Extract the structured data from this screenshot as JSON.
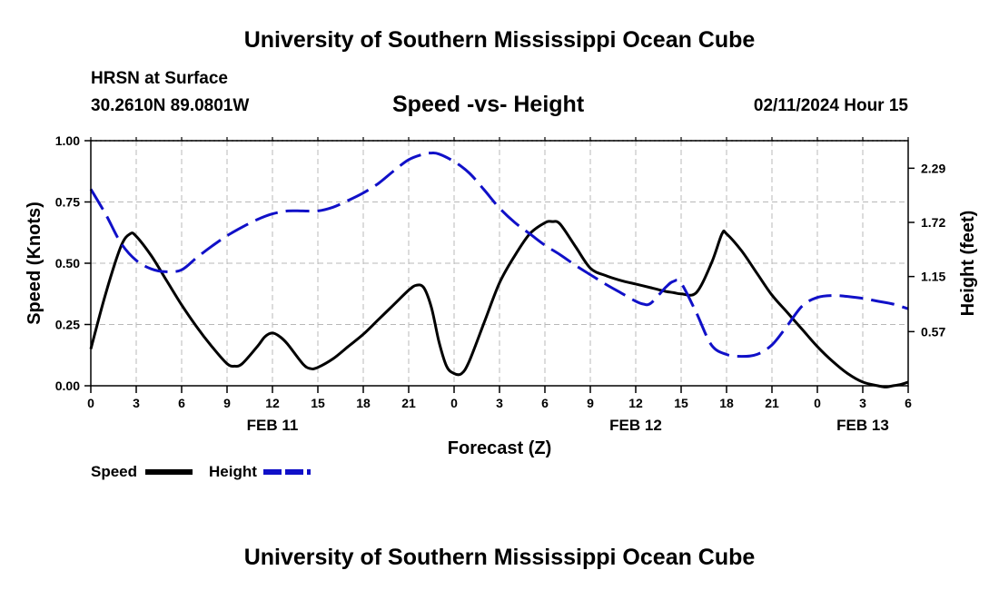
{
  "page": {
    "main_title": "University of Southern Mississippi Ocean Cube",
    "bottom_title": "University of Southern Mississippi Ocean Cube",
    "station": "HRSN at Surface",
    "coords": "30.2610N  89.0801W",
    "datetime": "02/11/2024 Hour 15"
  },
  "chart_data": {
    "type": "line",
    "title": "Speed -vs- Height",
    "xlabel": "Forecast (Z)",
    "ylabel": "Speed (Knots)",
    "ylabel_right": "Height (feet)",
    "x_range_hours": [
      0,
      54
    ],
    "x_tick_hours": [
      0,
      3,
      6,
      9,
      12,
      15,
      18,
      21,
      24,
      27,
      30,
      33,
      36,
      39,
      42,
      45,
      48,
      51,
      54
    ],
    "x_tick_labels": [
      "0",
      "3",
      "6",
      "9",
      "12",
      "15",
      "18",
      "21",
      "0",
      "3",
      "6",
      "9",
      "12",
      "15",
      "18",
      "21",
      "0",
      "3",
      "6"
    ],
    "date_labels": [
      {
        "hour": 12,
        "label": "FEB 11"
      },
      {
        "hour": 36,
        "label": "FEB 12"
      },
      {
        "hour": 51,
        "label": "FEB 13"
      }
    ],
    "ylim": [
      0,
      1.0
    ],
    "y_ticks": [
      0.0,
      0.25,
      0.5,
      0.75,
      1.0
    ],
    "y_tick_labels": [
      "0.00",
      "0.25",
      "0.50",
      "0.75",
      "1.00"
    ],
    "y2lim": [
      0.0,
      2.58
    ],
    "y2_ticks": [
      0.57,
      1.15,
      1.72,
      2.29
    ],
    "y2_tick_labels": [
      "0.57",
      "1.15",
      "1.72",
      "2.29"
    ],
    "grid": true,
    "legend": [
      {
        "label": "Speed",
        "color": "#000000",
        "style": "solid"
      },
      {
        "label": "Height",
        "color": "#1010c8",
        "style": "dashed"
      }
    ],
    "series": [
      {
        "name": "Speed",
        "axis": "left",
        "color": "#000000",
        "x": [
          0,
          1,
          2,
          2.6,
          3,
          4,
          5,
          6,
          7,
          8,
          9,
          9.5,
          10,
          11,
          11.5,
          12,
          12.5,
          13,
          14,
          14.5,
          15,
          16,
          17,
          18,
          19,
          20,
          21,
          21.5,
          22,
          22.5,
          23,
          23.5,
          24,
          24.5,
          25,
          26,
          27,
          28,
          29,
          30,
          30.5,
          31,
          32,
          33,
          34,
          35,
          36,
          37,
          38,
          38.5,
          39,
          40,
          41,
          41.7,
          42,
          43,
          44,
          45,
          46,
          47,
          48,
          49,
          50,
          51,
          52,
          52.5,
          53,
          53.5,
          54
        ],
        "values": [
          0.15,
          0.38,
          0.57,
          0.62,
          0.61,
          0.53,
          0.43,
          0.33,
          0.24,
          0.16,
          0.09,
          0.08,
          0.09,
          0.16,
          0.2,
          0.215,
          0.2,
          0.17,
          0.09,
          0.07,
          0.075,
          0.11,
          0.16,
          0.21,
          0.27,
          0.33,
          0.39,
          0.41,
          0.4,
          0.32,
          0.18,
          0.08,
          0.05,
          0.05,
          0.1,
          0.26,
          0.42,
          0.53,
          0.62,
          0.665,
          0.67,
          0.66,
          0.57,
          0.48,
          0.45,
          0.43,
          0.415,
          0.4,
          0.385,
          0.38,
          0.375,
          0.38,
          0.5,
          0.62,
          0.62,
          0.55,
          0.46,
          0.37,
          0.3,
          0.23,
          0.16,
          0.1,
          0.05,
          0.015,
          0.0,
          -0.005,
          0.0,
          0.005,
          0.015
        ]
      },
      {
        "name": "Height",
        "axis": "right",
        "color": "#1010c8",
        "x": [
          0,
          1,
          2,
          3,
          4,
          5,
          6,
          7,
          8,
          9,
          10,
          11,
          12,
          13,
          14,
          15,
          16,
          17,
          18,
          19,
          20,
          21,
          22,
          22.5,
          23,
          24,
          25,
          26,
          27,
          28,
          29,
          30,
          31,
          32,
          33,
          34,
          35,
          36,
          36.5,
          37,
          38,
          38.5,
          39,
          40,
          41,
          42,
          43,
          44,
          45,
          46,
          47,
          48,
          49,
          50,
          51,
          52,
          53,
          54
        ],
        "values": [
          2.07,
          1.8,
          1.5,
          1.32,
          1.23,
          1.2,
          1.22,
          1.35,
          1.47,
          1.58,
          1.67,
          1.75,
          1.81,
          1.84,
          1.84,
          1.84,
          1.88,
          1.95,
          2.03,
          2.13,
          2.26,
          2.38,
          2.44,
          2.45,
          2.44,
          2.36,
          2.24,
          2.06,
          1.87,
          1.72,
          1.6,
          1.48,
          1.38,
          1.27,
          1.17,
          1.07,
          0.98,
          0.89,
          0.86,
          0.87,
          1.04,
          1.1,
          1.08,
          0.77,
          0.43,
          0.33,
          0.31,
          0.33,
          0.43,
          0.63,
          0.84,
          0.93,
          0.95,
          0.94,
          0.92,
          0.89,
          0.86,
          0.81
        ]
      }
    ]
  }
}
